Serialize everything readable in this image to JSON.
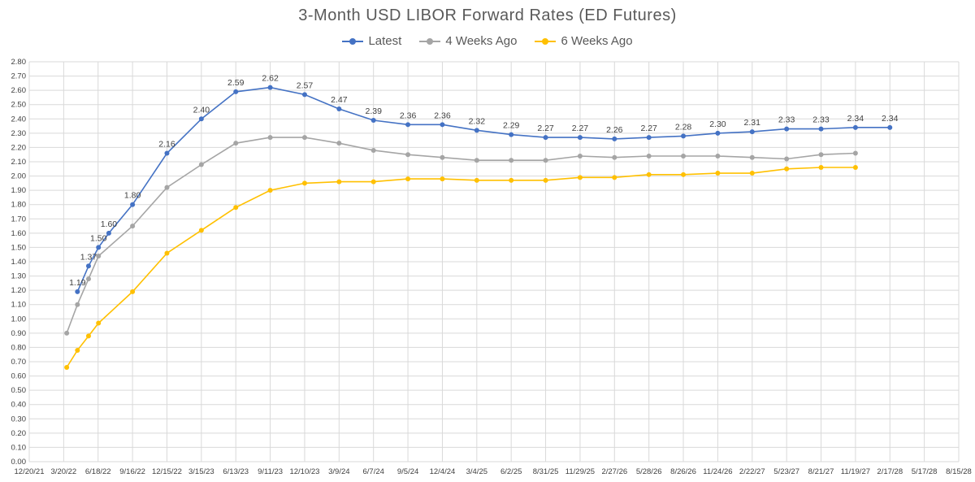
{
  "chart_data": {
    "type": "line",
    "title": "3-Month USD LIBOR Forward Rates (ED Futures)",
    "xlabel": "",
    "ylabel": "",
    "ylim": [
      0,
      2.8
    ],
    "y_step": 0.1,
    "grid": true,
    "legend_position": "top",
    "x_ticks": [
      "12/20/21",
      "3/20/22",
      "6/18/22",
      "9/16/22",
      "12/15/22",
      "3/15/23",
      "6/13/23",
      "9/11/23",
      "12/10/23",
      "3/9/24",
      "6/7/24",
      "9/5/24",
      "12/4/24",
      "3/4/25",
      "6/2/25",
      "8/31/25",
      "11/29/25",
      "2/27/26",
      "5/28/26",
      "8/26/26",
      "11/24/26",
      "2/22/27",
      "5/23/27",
      "8/21/27",
      "11/19/27",
      "2/17/28",
      "5/17/28",
      "8/15/28"
    ],
    "y_ticks": [
      "0.00",
      "0.10",
      "0.20",
      "0.30",
      "0.40",
      "0.50",
      "0.60",
      "0.70",
      "0.80",
      "0.90",
      "1.00",
      "1.10",
      "1.20",
      "1.30",
      "1.40",
      "1.50",
      "1.60",
      "1.70",
      "1.80",
      "1.90",
      "2.00",
      "2.10",
      "2.20",
      "2.30",
      "2.40",
      "2.50",
      "2.60",
      "2.70",
      "2.80"
    ],
    "series": [
      {
        "name": "Latest",
        "color": "#4472C4",
        "x": [
          "4/25/22",
          "5/24/22",
          "6/19/22",
          "7/16/22",
          "9/16/22",
          "12/15/22",
          "3/15/23",
          "6/13/23",
          "9/11/23",
          "12/10/23",
          "3/9/24",
          "6/7/24",
          "9/5/24",
          "12/4/24",
          "3/4/25",
          "6/2/25",
          "8/31/25",
          "11/29/25",
          "2/27/26",
          "5/28/26",
          "8/26/26",
          "11/24/26",
          "2/22/27",
          "5/23/27",
          "8/21/27",
          "11/19/27",
          "2/17/28"
        ],
        "values": [
          1.19,
          1.37,
          1.5,
          1.6,
          1.8,
          2.16,
          2.4,
          2.59,
          2.62,
          2.57,
          2.47,
          2.39,
          2.36,
          2.36,
          2.32,
          2.29,
          2.27,
          2.27,
          2.26,
          2.27,
          2.28,
          2.3,
          2.31,
          2.33,
          2.33,
          2.34,
          2.34
        ],
        "labels": [
          "1.19",
          "1.37",
          "1.50",
          "1.60",
          "1.80",
          "2.16",
          "2.40",
          "2.59",
          "2.62",
          "2.57",
          "2.47",
          "2.39",
          "2.36",
          "2.36",
          "2.32",
          "2.29",
          "2.27",
          "2.27",
          "2.26",
          "2.27",
          "2.28",
          "2.30",
          "2.31",
          "2.33",
          "2.33",
          "2.34",
          "2.34"
        ]
      },
      {
        "name": "4 Weeks Ago",
        "color": "#A5A5A5",
        "x": [
          "3/28/22",
          "4/25/22",
          "5/24/22",
          "6/19/22",
          "9/16/22",
          "12/15/22",
          "3/15/23",
          "6/13/23",
          "9/11/23",
          "12/10/23",
          "3/9/24",
          "6/7/24",
          "9/5/24",
          "12/4/24",
          "3/4/25",
          "6/2/25",
          "8/31/25",
          "11/29/25",
          "2/27/26",
          "5/28/26",
          "8/26/26",
          "11/24/26",
          "2/22/27",
          "5/23/27",
          "8/21/27",
          "11/19/27"
        ],
        "values": [
          0.9,
          1.1,
          1.28,
          1.44,
          1.65,
          1.92,
          2.08,
          2.23,
          2.27,
          2.27,
          2.23,
          2.18,
          2.15,
          2.13,
          2.11,
          2.11,
          2.11,
          2.14,
          2.13,
          2.14,
          2.14,
          2.14,
          2.13,
          2.12,
          2.15,
          2.16
        ]
      },
      {
        "name": "6 Weeks Ago",
        "color": "#FFC000",
        "x": [
          "3/28/22",
          "4/25/22",
          "5/24/22",
          "6/19/22",
          "9/16/22",
          "12/15/22",
          "3/15/23",
          "6/13/23",
          "9/11/23",
          "12/10/23",
          "3/9/24",
          "6/7/24",
          "9/5/24",
          "12/4/24",
          "3/4/25",
          "6/2/25",
          "8/31/25",
          "11/29/25",
          "2/27/26",
          "5/28/26",
          "8/26/26",
          "11/24/26",
          "2/22/27",
          "5/23/27",
          "8/21/27",
          "11/19/27"
        ],
        "values": [
          0.66,
          0.78,
          0.88,
          0.97,
          1.19,
          1.46,
          1.62,
          1.78,
          1.9,
          1.95,
          1.96,
          1.96,
          1.98,
          1.98,
          1.97,
          1.97,
          1.97,
          1.99,
          1.99,
          2.01,
          2.01,
          2.02,
          2.02,
          2.05,
          2.06,
          2.06
        ]
      }
    ]
  }
}
